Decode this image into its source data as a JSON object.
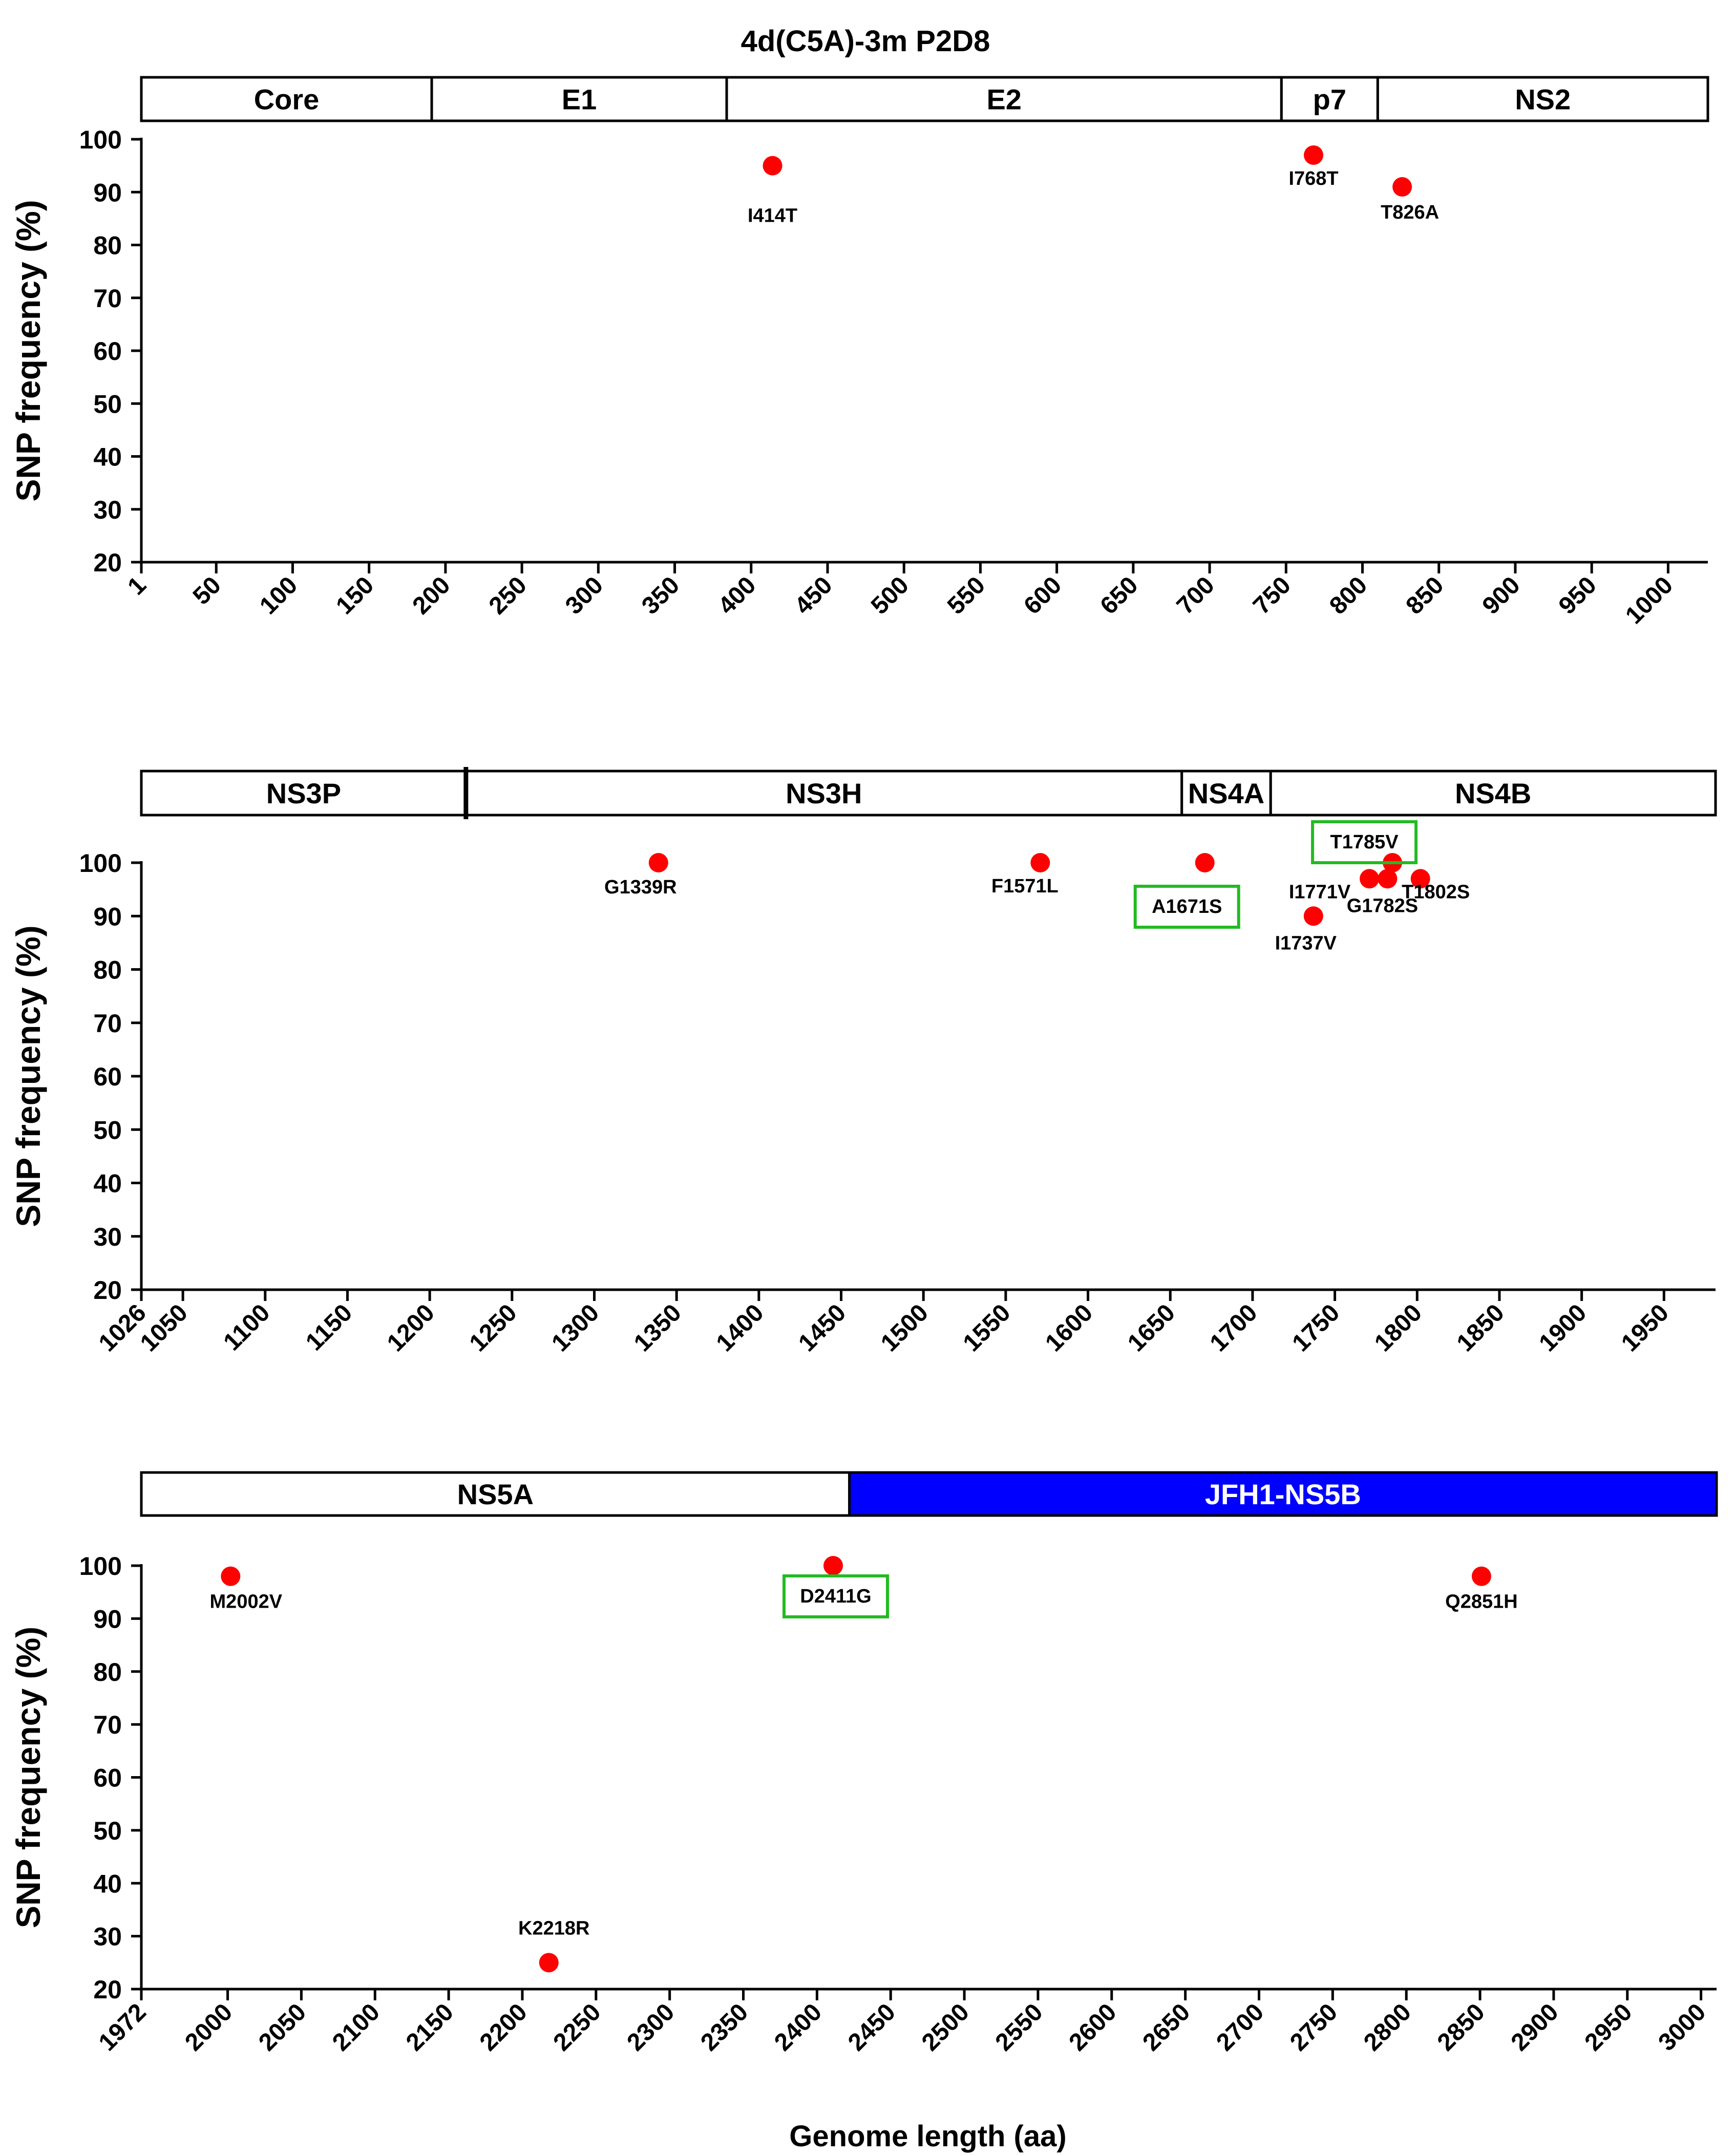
{
  "figure_title": "4d(C5A)-3m P2D8",
  "x_axis_label": "Genome length (aa)",
  "colors": {
    "point": "#ff0000",
    "highlight_box": "#22bb22",
    "ns5b_fill": "#0000ff",
    "ns5b_text": "#ffffff",
    "axis": "#000000"
  },
  "chart_data": [
    {
      "type": "scatter",
      "title": "",
      "xlabel": "",
      "ylabel": "SNP frequency (%)",
      "xlim": [
        1,
        1026
      ],
      "ylim": [
        20,
        100
      ],
      "yticks": [
        20,
        30,
        40,
        50,
        60,
        70,
        80,
        90,
        100
      ],
      "xticks": [
        1,
        50,
        100,
        150,
        200,
        250,
        300,
        350,
        400,
        450,
        500,
        550,
        600,
        650,
        700,
        750,
        800,
        850,
        900,
        950,
        1000
      ],
      "regions": [
        {
          "name": "Core",
          "start": 1,
          "end": 191
        },
        {
          "name": "E1",
          "start": 191,
          "end": 384
        },
        {
          "name": "E2",
          "start": 384,
          "end": 747
        },
        {
          "name": "p7",
          "start": 747,
          "end": 810
        },
        {
          "name": "NS2",
          "start": 810,
          "end": 1026
        }
      ],
      "points": [
        {
          "label": "I414T",
          "x": 414,
          "y": 95,
          "highlight": false
        },
        {
          "label": "I768T",
          "x": 768,
          "y": 97,
          "highlight": false
        },
        {
          "label": "T826A",
          "x": 826,
          "y": 91,
          "highlight": false
        }
      ]
    },
    {
      "type": "scatter",
      "title": "",
      "xlabel": "",
      "ylabel": "SNP frequency (%)",
      "xlim": [
        1026,
        1972
      ],
      "ylim": [
        20,
        100
      ],
      "yticks": [
        20,
        30,
        40,
        50,
        60,
        70,
        80,
        90,
        100
      ],
      "xticks": [
        1026,
        1050,
        1100,
        1150,
        1200,
        1250,
        1300,
        1350,
        1400,
        1450,
        1500,
        1550,
        1600,
        1650,
        1700,
        1750,
        1800,
        1850,
        1900,
        1950
      ],
      "regions": [
        {
          "name": "NS3P",
          "start": 1026,
          "end": 1222
        },
        {
          "name": "NS3H",
          "start": 1222,
          "end": 1657
        },
        {
          "name": "NS4A",
          "start": 1657,
          "end": 1711
        },
        {
          "name": "NS4B",
          "start": 1711,
          "end": 1972
        }
      ],
      "points": [
        {
          "label": "G1339R",
          "x": 1339,
          "y": 100,
          "highlight": false
        },
        {
          "label": "F1571L",
          "x": 1571,
          "y": 100,
          "highlight": false
        },
        {
          "label": "A1671S",
          "x": 1671,
          "y": 100,
          "highlight": true
        },
        {
          "label": "I1737V",
          "x": 1737,
          "y": 90,
          "highlight": false
        },
        {
          "label": "I1771V",
          "x": 1771,
          "y": 97,
          "highlight": false
        },
        {
          "label": "G1782S",
          "x": 1782,
          "y": 97,
          "highlight": false
        },
        {
          "label": "T1785V",
          "x": 1785,
          "y": 100,
          "highlight": true
        },
        {
          "label": "T1802S",
          "x": 1802,
          "y": 97,
          "highlight": false
        }
      ]
    },
    {
      "type": "scatter",
      "title": "",
      "xlabel": "Genome length (aa)",
      "ylabel": "SNP frequency (%)",
      "xlim": [
        1972,
        3005
      ],
      "ylim": [
        20,
        100
      ],
      "yticks": [
        20,
        30,
        40,
        50,
        60,
        70,
        80,
        90,
        100
      ],
      "xticks": [
        1972,
        2000,
        2050,
        2100,
        2150,
        2200,
        2250,
        2300,
        2350,
        2400,
        2450,
        2500,
        2550,
        2600,
        2650,
        2700,
        2750,
        2800,
        2850,
        2900,
        2950,
        3000
      ],
      "regions": [
        {
          "name": "NS5A",
          "start": 1972,
          "end": 2422
        },
        {
          "name": "JFH1-NS5B",
          "start": 2422,
          "end": 3005,
          "filled": true
        }
      ],
      "points": [
        {
          "label": "M2002V",
          "x": 2002,
          "y": 98,
          "highlight": false
        },
        {
          "label": "K2218R",
          "x": 2218,
          "y": 25,
          "highlight": false
        },
        {
          "label": "D2411G",
          "x": 2411,
          "y": 100,
          "highlight": true
        },
        {
          "label": "Q2851H",
          "x": 2851,
          "y": 98,
          "highlight": false
        }
      ]
    }
  ]
}
